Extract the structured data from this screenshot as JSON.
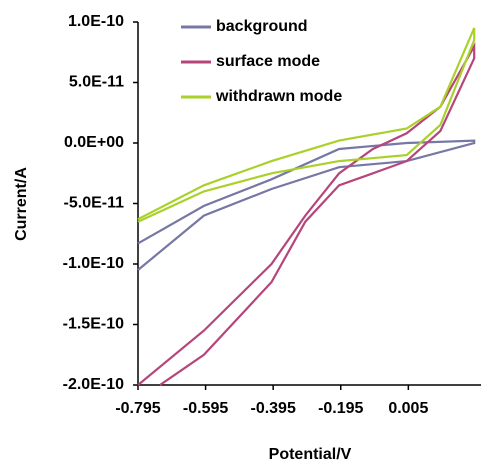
{
  "chart_data": {
    "type": "line",
    "x_label": "Potential/V",
    "y_label": "Current/A",
    "xlim": [
      -0.795,
      0.22
    ],
    "ylim": [
      -2e-10,
      1e-10
    ],
    "xticks": [
      -0.795,
      -0.595,
      -0.395,
      -0.195,
      0.005
    ],
    "yticks": [
      {
        "value": 1e-10,
        "label": "1.0E-10"
      },
      {
        "value": 5e-11,
        "label": "5.0E-11"
      },
      {
        "value": 0,
        "label": "0.0E+00"
      },
      {
        "value": -5e-11,
        "label": "-5.0E-11"
      },
      {
        "value": -1e-10,
        "label": "-1.0E-10"
      },
      {
        "value": -1.5e-10,
        "label": "-1.5E-10"
      },
      {
        "value": -2e-10,
        "label": "-2.0E-10"
      }
    ],
    "series": [
      {
        "name": "background",
        "color": "#7777a5",
        "x": [
          -0.795,
          -0.6,
          -0.4,
          -0.2,
          0,
          0.2,
          0.2,
          0,
          -0.2,
          -0.4,
          -0.6,
          -0.795
        ],
        "values": [
          -8.3e-11,
          -5.2e-11,
          -3e-11,
          -5e-12,
          0,
          2e-12,
          0,
          -1.5e-11,
          -2e-11,
          -3.8e-11,
          -6e-11,
          -1.05e-10
        ]
      },
      {
        "name": "surface mode",
        "color": "#b5457a",
        "x": [
          -0.795,
          -0.6,
          -0.4,
          -0.3,
          -0.2,
          -0.1,
          0,
          0.1,
          0.2,
          0.2,
          0.1,
          0,
          -0.1,
          -0.2,
          -0.3,
          -0.4,
          -0.6,
          -0.73
        ],
        "values": [
          -2e-10,
          -1.55e-10,
          -1e-10,
          -6e-11,
          -2.5e-11,
          -5e-12,
          8e-12,
          3e-11,
          8e-11,
          7e-11,
          1e-11,
          -1.5e-11,
          -2.5e-11,
          -3.5e-11,
          -6.5e-11,
          -1.15e-10,
          -1.75e-10,
          -2e-10
        ]
      },
      {
        "name": "withdrawn mode",
        "color": "#a9d12a",
        "x": [
          -0.795,
          -0.6,
          -0.4,
          -0.2,
          0,
          0.1,
          0.2,
          0.2,
          0.1,
          0,
          -0.2,
          -0.4,
          -0.6,
          -0.795
        ],
        "values": [
          -6.3e-11,
          -3.5e-11,
          -1.5e-11,
          2e-12,
          1.2e-11,
          3e-11,
          9.5e-11,
          8.5e-11,
          1.5e-11,
          -1e-11,
          -1.5e-11,
          -2.5e-11,
          -4e-11,
          -6.5e-11
        ]
      }
    ]
  }
}
